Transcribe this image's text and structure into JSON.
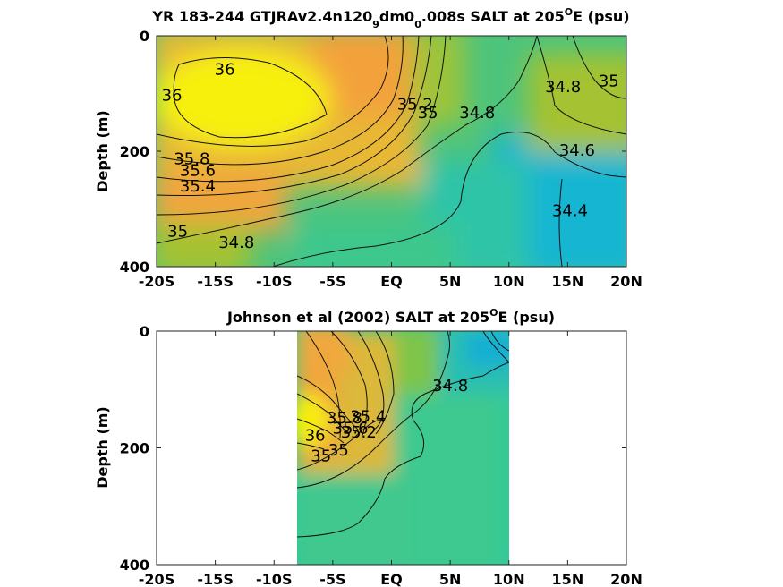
{
  "colors": {
    "high_salt": "#f8f40c",
    "orange": "#f5a93c",
    "gold": "#e3b938",
    "olive": "#b5c231",
    "green": "#5fc66f",
    "teal": "#33c89a",
    "cyan": "#16b6d4",
    "contour_line": "#111111"
  },
  "chart_data": [
    {
      "type": "heatmap",
      "title_main": "YR 183-244 GTJRAv2.4n120",
      "title_sub1": "9",
      "title_mid": "dm0",
      "title_sub2": "0",
      "title_end": ".008s SALT at 205",
      "title_deg": "O",
      "title_tail": "E (psu)",
      "ylabel": "Depth (m)",
      "xlabel": "",
      "x_ticks": [
        "-20S",
        "-15S",
        "-10S",
        "-5S",
        "EQ",
        "5N",
        "10N",
        "15N",
        "20N"
      ],
      "y_ticks": [
        "0",
        "200",
        "400"
      ],
      "xlim": [
        -20,
        20
      ],
      "ylim": [
        0,
        400
      ],
      "y_reversed": true,
      "variable": "SALT",
      "units": "psu",
      "contour_labels": [
        {
          "text": "36",
          "lat": -14.2,
          "depth": 60
        },
        {
          "text": "36",
          "lat": -18.7,
          "depth": 105
        },
        {
          "text": "35.8",
          "lat": -17.0,
          "depth": 215
        },
        {
          "text": "35.6",
          "lat": -16.5,
          "depth": 235
        },
        {
          "text": "35.4",
          "lat": -16.5,
          "depth": 262
        },
        {
          "text": "35",
          "lat": -18.2,
          "depth": 340
        },
        {
          "text": "34.8",
          "lat": -13.2,
          "depth": 360
        },
        {
          "text": "35.2",
          "lat": 2.0,
          "depth": 120
        },
        {
          "text": "35",
          "lat": 3.1,
          "depth": 135
        },
        {
          "text": "34.8",
          "lat": 7.3,
          "depth": 135
        },
        {
          "text": "34.8",
          "lat": 14.6,
          "depth": 90
        },
        {
          "text": "35",
          "lat": 18.5,
          "depth": 80
        },
        {
          "text": "34.6",
          "lat": 15.8,
          "depth": 200
        },
        {
          "text": "34.4",
          "lat": 15.2,
          "depth": 305
        }
      ]
    },
    {
      "type": "heatmap",
      "title_main": "Johnson et al (2002) SALT at 205",
      "title_deg": "O",
      "title_tail": "E (psu)",
      "ylabel": "Depth (m)",
      "xlabel": "",
      "x_ticks": [
        "-20S",
        "-15S",
        "-10S",
        "-5S",
        "EQ",
        "5N",
        "10N",
        "15N",
        "20N"
      ],
      "y_ticks": [
        "0",
        "200",
        "400"
      ],
      "xlim": [
        -20,
        20
      ],
      "ylim": [
        0,
        400
      ],
      "y_reversed": true,
      "data_lat_range": [
        -8,
        10
      ],
      "variable": "SALT",
      "units": "psu",
      "contour_labels": [
        {
          "text": "34.8",
          "lat": 5.0,
          "depth": 95
        },
        {
          "text": "35.8",
          "lat": -4.0,
          "depth": 150
        },
        {
          "text": "35.6",
          "lat": -3.5,
          "depth": 168
        },
        {
          "text": "35.4",
          "lat": -2.0,
          "depth": 148
        },
        {
          "text": "35.2",
          "lat": -2.8,
          "depth": 175
        },
        {
          "text": "35",
          "lat": -4.5,
          "depth": 205
        },
        {
          "text": "36",
          "lat": -6.5,
          "depth": 180
        },
        {
          "text": "35",
          "lat": -6.0,
          "depth": 215
        }
      ]
    }
  ]
}
